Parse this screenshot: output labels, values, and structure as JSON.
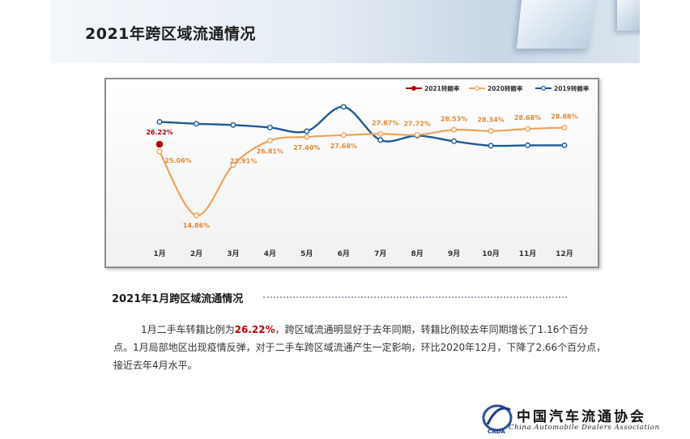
{
  "header": {
    "title": "2021年跨区域流通情况"
  },
  "chart_data": {
    "type": "line",
    "categories": [
      "1月",
      "2月",
      "3月",
      "4月",
      "5月",
      "6月",
      "7月",
      "8月",
      "9月",
      "10月",
      "11月",
      "12月"
    ],
    "ylim": [
      12,
      34
    ],
    "grid": false,
    "legend_position": "top-right",
    "series": [
      {
        "name": "2021转籍率",
        "color": "#b00000",
        "values": [
          26.22,
          null,
          null,
          null,
          null,
          null,
          null,
          null,
          null,
          null,
          null,
          null
        ]
      },
      {
        "name": "2020转籍率",
        "color": "#f0a25a",
        "values": [
          25.06,
          14.86,
          22.91,
          26.81,
          27.4,
          27.68,
          27.87,
          27.72,
          28.53,
          28.34,
          28.68,
          28.88
        ]
      },
      {
        "name": "2019转籍率",
        "color": "#1f5a96",
        "values": [
          29.8,
          29.5,
          29.3,
          28.9,
          28.3,
          32.2,
          26.9,
          27.6,
          26.7,
          26.0,
          26.05,
          26.05
        ]
      }
    ],
    "data_labels": [
      {
        "series": "2021转籍率",
        "index": 0,
        "text": "26.22%"
      },
      {
        "series": "2020转籍率",
        "index": 0,
        "text": "25.06%"
      },
      {
        "series": "2020转籍率",
        "index": 1,
        "text": "14.86%"
      },
      {
        "series": "2020转籍率",
        "index": 2,
        "text": "22.91%"
      },
      {
        "series": "2020转籍率",
        "index": 3,
        "text": "26.81%"
      },
      {
        "series": "2020转籍率",
        "index": 4,
        "text": "27.40%"
      },
      {
        "series": "2020转籍率",
        "index": 5,
        "text": "27.68%"
      },
      {
        "series": "2020转籍率",
        "index": 6,
        "text": "27.87%"
      },
      {
        "series": "2020转籍率",
        "index": 7,
        "text": "27.72%"
      },
      {
        "series": "2020转籍率",
        "index": 8,
        "text": "28.53%"
      },
      {
        "series": "2020转籍率",
        "index": 9,
        "text": "28.34%"
      },
      {
        "series": "2020转籍率",
        "index": 10,
        "text": "28.68%"
      },
      {
        "series": "2020转籍率",
        "index": 11,
        "text": "28.88%"
      }
    ]
  },
  "section": {
    "title": "2021年1月跨区域流通情况",
    "para_before": "1月二手车转籍比例为",
    "para_highlight": "26.22%",
    "para_after": "，跨区域流通明显好于去年同期，转籍比例较去年同期增长了1.16个百分点。1月局部地区出现疫情反弹，对于二手车跨区域流通产生一定影响，环比2020年12月，下降了2.66个百分点，接近去年4月水平。"
  },
  "logo": {
    "cn": "中国汽车流通协会",
    "en": "China Automobile Dealers Association",
    "mark": "CADA"
  }
}
